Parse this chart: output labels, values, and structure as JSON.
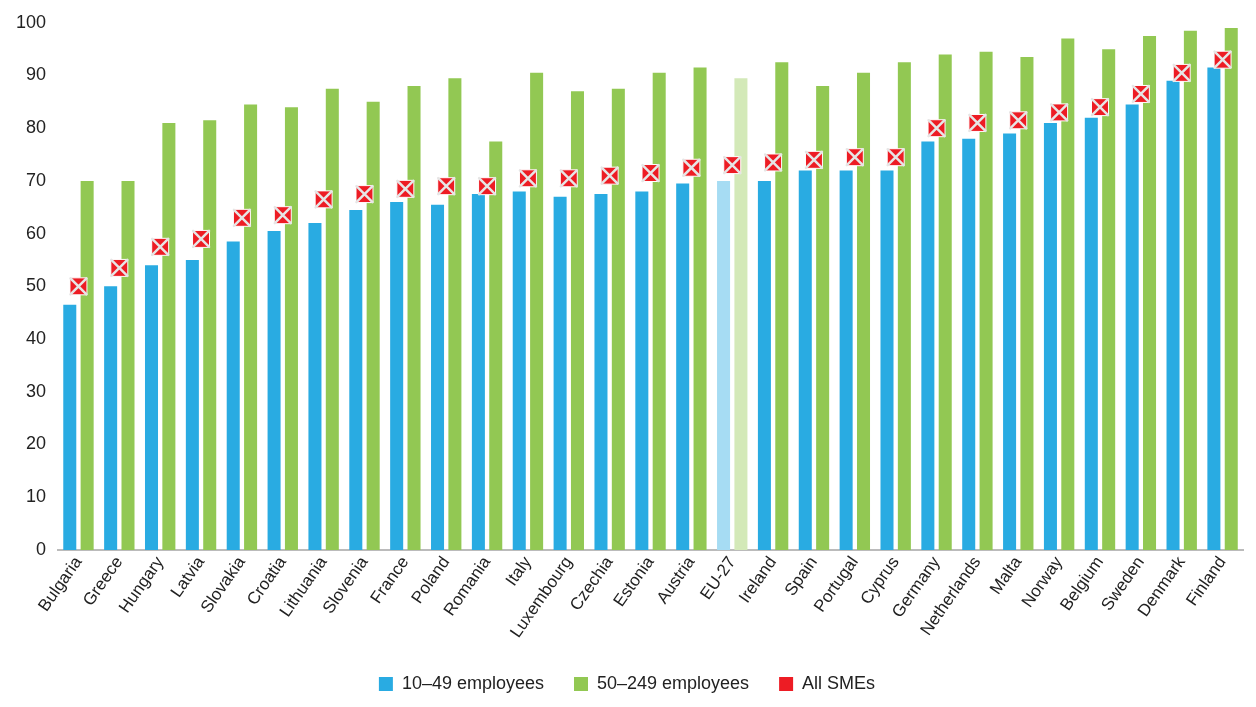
{
  "chart_data": {
    "type": "bar",
    "categories": [
      "Bulgaria",
      "Greece",
      "Hungary",
      "Latvia",
      "Slovakia",
      "Croatia",
      "Lithuania",
      "Slovenia",
      "France",
      "Poland",
      "Romania",
      "Italy",
      "Luxembourg",
      "Czechia",
      "Estonia",
      "Austria",
      "EU-27",
      "Ireland",
      "Spain",
      "Portugal",
      "Cyprus",
      "Germany",
      "Netherlands",
      "Malta",
      "Norway",
      "Belgium",
      "Sweden",
      "Denmark",
      "Finland"
    ],
    "series": [
      {
        "name": "10–49 employees",
        "color": "#29abe2",
        "colors": [
          "#29abe2",
          "#29abe2",
          "#29abe2",
          "#29abe2",
          "#29abe2",
          "#29abe2",
          "#29abe2",
          "#29abe2",
          "#29abe2",
          "#29abe2",
          "#29abe2",
          "#29abe2",
          "#29abe2",
          "#29abe2",
          "#29abe2",
          "#29abe2",
          "#a6dcf3",
          "#29abe2",
          "#29abe2",
          "#29abe2",
          "#29abe2",
          "#29abe2",
          "#29abe2",
          "#29abe2",
          "#29abe2",
          "#29abe2",
          "#29abe2",
          "#29abe2",
          "#29abe2"
        ],
        "values": [
          46.5,
          50,
          54,
          55,
          58.5,
          60.5,
          62,
          64.5,
          66,
          65.5,
          67.5,
          68,
          67,
          67.5,
          68,
          69.5,
          70,
          70,
          72,
          72,
          72,
          77.5,
          78,
          79,
          81,
          82,
          84.5,
          89,
          91.5
        ]
      },
      {
        "name": "50–249 employees",
        "color": "#92c853",
        "colors": [
          "#92c853",
          "#92c853",
          "#92c853",
          "#92c853",
          "#92c853",
          "#92c853",
          "#92c853",
          "#92c853",
          "#92c853",
          "#92c853",
          "#92c853",
          "#92c853",
          "#92c853",
          "#92c853",
          "#92c853",
          "#92c853",
          "#d3e9b8",
          "#92c853",
          "#92c853",
          "#92c853",
          "#92c853",
          "#92c853",
          "#92c853",
          "#92c853",
          "#92c853",
          "#92c853",
          "#92c853",
          "#92c853",
          "#92c853"
        ],
        "values": [
          70,
          70,
          81,
          81.5,
          84.5,
          84,
          87.5,
          85,
          88,
          89.5,
          77.5,
          90.5,
          87,
          87.5,
          90.5,
          91.5,
          89.5,
          92.5,
          88,
          90.5,
          92.5,
          94,
          94.5,
          93.5,
          97,
          95,
          97.5,
          98.5,
          99
        ]
      },
      {
        "name": "All SMEs",
        "type": "scatter",
        "marker": "square",
        "color": "#ed1c24",
        "x": [
          "Bulgaria",
          "Greece",
          "Hungary",
          "Latvia",
          "Slovakia",
          "Croatia",
          "Lithuania",
          "Slovenia",
          "France",
          "Poland",
          "Romania",
          "Italy",
          "Luxembourg",
          "Czechia",
          "Estonia",
          "Austria",
          "EU-27",
          "Ireland",
          "Spain",
          "Portugal",
          "Cyprus",
          "Germany",
          "Netherlands",
          "Malta",
          "Norway",
          "Belgium",
          "Sweden",
          "Denmark",
          "Finland"
        ],
        "values": [
          50,
          53.5,
          57.5,
          59,
          63,
          63.5,
          66.5,
          67.5,
          68.5,
          69,
          69,
          70.5,
          70.5,
          71,
          71.5,
          72.5,
          73,
          73.5,
          74,
          74.5,
          74.5,
          80,
          81,
          81.5,
          83,
          84,
          86.5,
          90.5,
          93
        ]
      }
    ],
    "ylim": [
      0,
      100
    ],
    "yticks": [
      0,
      10,
      20,
      30,
      40,
      50,
      60,
      70,
      80,
      90,
      100
    ],
    "grid": false,
    "legend": "bottom"
  }
}
